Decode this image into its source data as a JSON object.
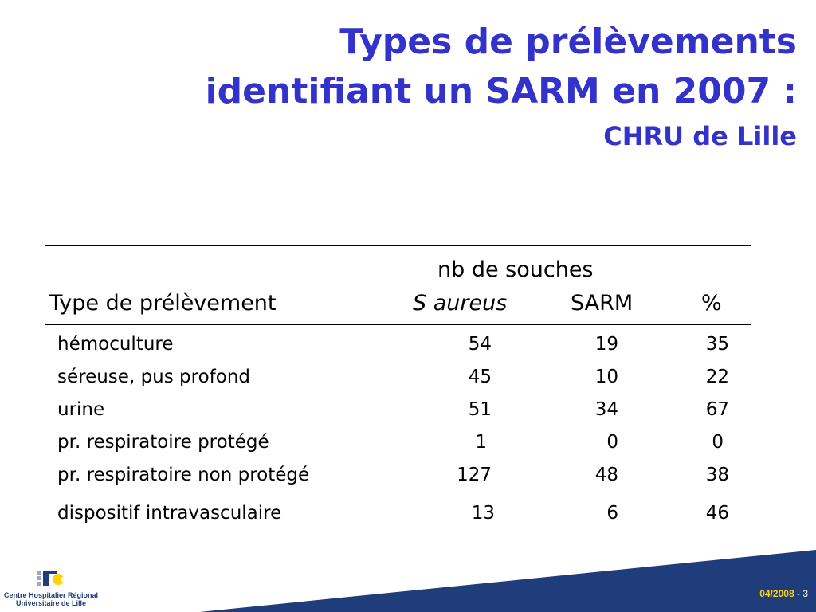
{
  "title": {
    "line1": "Types de prélèvements",
    "line2": "identifiant un SARM en 2007 :",
    "subtitle": "CHRU de Lille"
  },
  "table": {
    "header_group": "nb de souches",
    "columns": [
      "Type de prélèvement",
      "S aureus",
      "SARM",
      "%"
    ],
    "rows": [
      [
        "hémoculture",
        "54",
        "19",
        "35"
      ],
      [
        "séreuse, pus profond",
        "45",
        "10",
        "22"
      ],
      [
        "urine",
        "51",
        "34",
        "67"
      ],
      [
        "pr. respiratoire protégé",
        "1",
        "0",
        "0"
      ],
      [
        "pr. respiratoire non protégé",
        "127",
        "48",
        "38"
      ],
      [
        "dispositif intravasculaire",
        "13",
        "6",
        "46"
      ]
    ]
  },
  "footer": {
    "logo_line1": "Centre Hospitalier Régional",
    "logo_line2": "Universitaire de Lille",
    "date": "04/2008",
    "separator": " - ",
    "page": "3"
  },
  "colors": {
    "title": "#3333cc",
    "band": "#1f3d7a",
    "accent": "#ffd200"
  }
}
